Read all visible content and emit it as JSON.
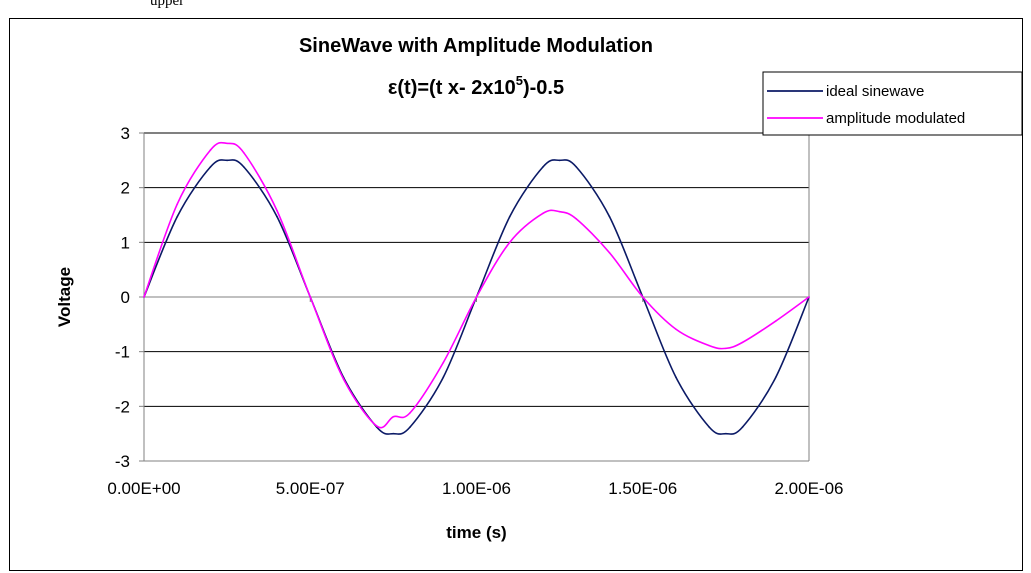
{
  "document": {
    "caption_fragment": "upper"
  },
  "chart_data": {
    "type": "line",
    "title": "SineWave with Amplitude Modulation",
    "subtitle_prefix": "ε(t)=(t x- 2x10",
    "subtitle_sup": "5",
    "subtitle_suffix": ")-0.5",
    "xlabel": "time (s)",
    "ylabel": "Voltage",
    "xlim": [
      0,
      2e-06
    ],
    "ylim": [
      -3,
      3
    ],
    "x_ticks": [
      {
        "value": 0,
        "label": "0.00E+00"
      },
      {
        "value": 5e-07,
        "label": "5.00E-07"
      },
      {
        "value": 1e-06,
        "label": "1.00E-06"
      },
      {
        "value": 1.5e-06,
        "label": "1.50E-06"
      },
      {
        "value": 2e-06,
        "label": "2.00E-06"
      }
    ],
    "y_ticks": [
      {
        "value": 3,
        "label": "3"
      },
      {
        "value": 2,
        "label": "2"
      },
      {
        "value": 1,
        "label": "1"
      },
      {
        "value": 0,
        "label": "0"
      },
      {
        "value": -1,
        "label": "-1"
      },
      {
        "value": -2,
        "label": "-2"
      },
      {
        "value": -3,
        "label": "-3"
      }
    ],
    "grid": "horizontal",
    "legend_position": "top-right",
    "x": [
      0,
      1e-07,
      2e-07,
      2.5e-07,
      3e-07,
      4e-07,
      5e-07,
      6e-07,
      7e-07,
      7.5e-07,
      8e-07,
      9e-07,
      1e-06,
      1.1e-06,
      1.2e-06,
      1.25e-06,
      1.3e-06,
      1.4e-06,
      1.5e-06,
      1.6e-06,
      1.7e-06,
      1.75e-06,
      1.8e-06,
      1.9e-06,
      2e-06
    ],
    "series": [
      {
        "name": "ideal sinewave",
        "color": "#0b1a66",
        "values": [
          0,
          1.47,
          2.38,
          2.5,
          2.38,
          1.47,
          0,
          -1.47,
          -2.38,
          -2.5,
          -2.38,
          -1.47,
          0,
          1.47,
          2.38,
          2.5,
          2.38,
          1.47,
          0,
          -1.47,
          -2.38,
          -2.5,
          -2.38,
          -1.47,
          0
        ]
      },
      {
        "name": "amplitude modulated",
        "color": "#ff00ff",
        "values": [
          0,
          1.7,
          2.69,
          2.81,
          2.64,
          1.58,
          0,
          -1.5,
          -2.36,
          -2.19,
          -2.12,
          -1.2,
          0,
          1.0,
          1.53,
          1.56,
          1.43,
          0.81,
          0,
          -0.59,
          -0.89,
          -0.94,
          -0.83,
          -0.44,
          0
        ]
      }
    ]
  }
}
